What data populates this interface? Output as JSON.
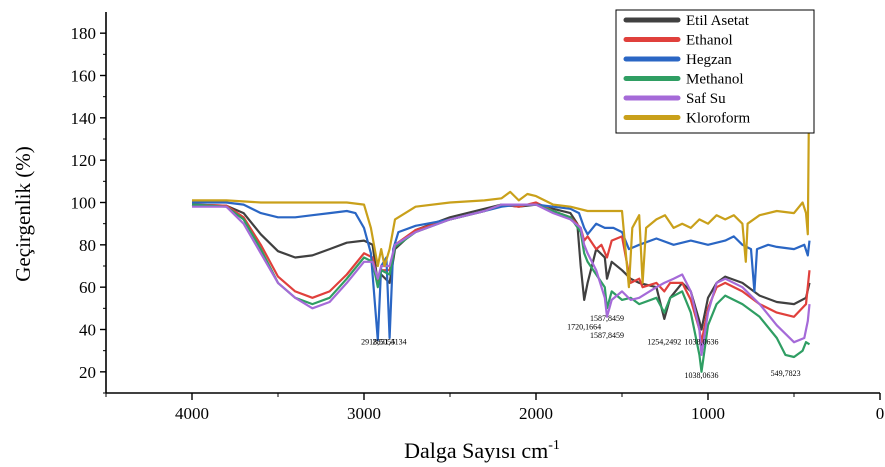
{
  "chart_data": {
    "type": "line",
    "xlabel": "Dalga Sayısı cm",
    "xlabel_sup": "-1",
    "ylabel": "Geçirgenlik (%)",
    "xlim": [
      4500,
      0
    ],
    "ylim": [
      10,
      190
    ],
    "x_ticks": [
      4000,
      3000,
      2000,
      1000,
      0
    ],
    "y_ticks": [
      20,
      40,
      60,
      80,
      100,
      120,
      140,
      160,
      180
    ],
    "legend_position": "top-right",
    "series": [
      {
        "name": "Etil Asetat",
        "color": "#404040",
        "points": [
          [
            4000,
            99
          ],
          [
            3800,
            98.5
          ],
          [
            3700,
            95
          ],
          [
            3600,
            85
          ],
          [
            3500,
            77
          ],
          [
            3400,
            74
          ],
          [
            3300,
            75
          ],
          [
            3200,
            78
          ],
          [
            3100,
            81
          ],
          [
            3000,
            82
          ],
          [
            2950,
            80
          ],
          [
            2920,
            62
          ],
          [
            2900,
            66
          ],
          [
            2851,
            62
          ],
          [
            2820,
            78
          ],
          [
            2700,
            87
          ],
          [
            2500,
            93
          ],
          [
            2300,
            97
          ],
          [
            2200,
            99
          ],
          [
            2100,
            98
          ],
          [
            2000,
            99
          ],
          [
            1900,
            97
          ],
          [
            1800,
            95
          ],
          [
            1760,
            90
          ],
          [
            1740,
            70
          ],
          [
            1720,
            54
          ],
          [
            1700,
            62
          ],
          [
            1650,
            78
          ],
          [
            1600,
            74
          ],
          [
            1587,
            64
          ],
          [
            1560,
            72
          ],
          [
            1500,
            68
          ],
          [
            1450,
            64
          ],
          [
            1400,
            62
          ],
          [
            1300,
            60
          ],
          [
            1254,
            45
          ],
          [
            1220,
            55
          ],
          [
            1150,
            62
          ],
          [
            1100,
            58
          ],
          [
            1050,
            44
          ],
          [
            1038,
            40
          ],
          [
            1000,
            55
          ],
          [
            950,
            62
          ],
          [
            900,
            65
          ],
          [
            800,
            62
          ],
          [
            700,
            56
          ],
          [
            600,
            53
          ],
          [
            500,
            52
          ],
          [
            430,
            55
          ],
          [
            410,
            62
          ]
        ]
      },
      {
        "name": "Ethanol",
        "color": "#e0403c",
        "points": [
          [
            4000,
            99
          ],
          [
            3800,
            98.5
          ],
          [
            3700,
            93
          ],
          [
            3600,
            80
          ],
          [
            3500,
            65
          ],
          [
            3400,
            58
          ],
          [
            3300,
            55
          ],
          [
            3200,
            58
          ],
          [
            3100,
            66
          ],
          [
            3000,
            76
          ],
          [
            2950,
            74
          ],
          [
            2920,
            62
          ],
          [
            2900,
            68
          ],
          [
            2851,
            68
          ],
          [
            2820,
            80
          ],
          [
            2700,
            87
          ],
          [
            2500,
            92
          ],
          [
            2300,
            96
          ],
          [
            2200,
            99
          ],
          [
            2100,
            98
          ],
          [
            2000,
            100
          ],
          [
            1900,
            96
          ],
          [
            1800,
            93
          ],
          [
            1740,
            88
          ],
          [
            1720,
            82
          ],
          [
            1700,
            84
          ],
          [
            1650,
            78
          ],
          [
            1620,
            80
          ],
          [
            1587,
            74
          ],
          [
            1560,
            82
          ],
          [
            1500,
            84
          ],
          [
            1450,
            62
          ],
          [
            1400,
            64
          ],
          [
            1380,
            60
          ],
          [
            1300,
            62
          ],
          [
            1254,
            58
          ],
          [
            1220,
            62
          ],
          [
            1150,
            62
          ],
          [
            1100,
            54
          ],
          [
            1050,
            40
          ],
          [
            1038,
            34
          ],
          [
            1000,
            50
          ],
          [
            950,
            60
          ],
          [
            900,
            62
          ],
          [
            800,
            58
          ],
          [
            700,
            52
          ],
          [
            600,
            48
          ],
          [
            500,
            46
          ],
          [
            430,
            52
          ],
          [
            410,
            68
          ]
        ]
      },
      {
        "name": "Hegzan",
        "color": "#2a66c4",
        "points": [
          [
            4000,
            100
          ],
          [
            3800,
            100
          ],
          [
            3700,
            99
          ],
          [
            3600,
            95
          ],
          [
            3500,
            93
          ],
          [
            3400,
            93
          ],
          [
            3300,
            94
          ],
          [
            3200,
            95
          ],
          [
            3100,
            96
          ],
          [
            3050,
            95
          ],
          [
            3000,
            88
          ],
          [
            2960,
            76
          ],
          [
            2920,
            35
          ],
          [
            2900,
            70
          ],
          [
            2870,
            74
          ],
          [
            2851,
            36
          ],
          [
            2830,
            78
          ],
          [
            2800,
            86
          ],
          [
            2700,
            89
          ],
          [
            2500,
            92
          ],
          [
            2300,
            96
          ],
          [
            2200,
            98
          ],
          [
            2100,
            99
          ],
          [
            2000,
            99
          ],
          [
            1900,
            98
          ],
          [
            1800,
            97
          ],
          [
            1750,
            95
          ],
          [
            1720,
            88
          ],
          [
            1700,
            85
          ],
          [
            1650,
            90
          ],
          [
            1600,
            88
          ],
          [
            1550,
            88
          ],
          [
            1500,
            86
          ],
          [
            1460,
            78
          ],
          [
            1400,
            80
          ],
          [
            1300,
            83
          ],
          [
            1200,
            80
          ],
          [
            1100,
            82
          ],
          [
            1000,
            80
          ],
          [
            900,
            82
          ],
          [
            850,
            84
          ],
          [
            800,
            80
          ],
          [
            750,
            78
          ],
          [
            730,
            58
          ],
          [
            715,
            78
          ],
          [
            650,
            80
          ],
          [
            600,
            79
          ],
          [
            500,
            78
          ],
          [
            440,
            80
          ],
          [
            420,
            75
          ],
          [
            410,
            82
          ]
        ]
      },
      {
        "name": "Methanol",
        "color": "#2f9e63",
        "points": [
          [
            4000,
            99
          ],
          [
            3800,
            98
          ],
          [
            3700,
            92
          ],
          [
            3600,
            78
          ],
          [
            3500,
            62
          ],
          [
            3400,
            55
          ],
          [
            3300,
            52
          ],
          [
            3200,
            55
          ],
          [
            3100,
            64
          ],
          [
            3000,
            74
          ],
          [
            2950,
            72
          ],
          [
            2920,
            60
          ],
          [
            2900,
            68
          ],
          [
            2851,
            66
          ],
          [
            2820,
            79
          ],
          [
            2700,
            86
          ],
          [
            2500,
            92
          ],
          [
            2300,
            96
          ],
          [
            2200,
            99
          ],
          [
            2100,
            99
          ],
          [
            2000,
            99
          ],
          [
            1900,
            96
          ],
          [
            1800,
            93
          ],
          [
            1740,
            86
          ],
          [
            1720,
            76
          ],
          [
            1700,
            72
          ],
          [
            1650,
            66
          ],
          [
            1600,
            60
          ],
          [
            1587,
            50
          ],
          [
            1560,
            58
          ],
          [
            1500,
            54
          ],
          [
            1450,
            55
          ],
          [
            1400,
            52
          ],
          [
            1300,
            55
          ],
          [
            1254,
            48
          ],
          [
            1220,
            55
          ],
          [
            1150,
            58
          ],
          [
            1100,
            48
          ],
          [
            1050,
            28
          ],
          [
            1038,
            20
          ],
          [
            1000,
            42
          ],
          [
            950,
            52
          ],
          [
            900,
            56
          ],
          [
            800,
            52
          ],
          [
            700,
            46
          ],
          [
            600,
            36
          ],
          [
            550,
            28
          ],
          [
            500,
            27
          ],
          [
            450,
            30
          ],
          [
            430,
            34
          ],
          [
            410,
            33
          ]
        ]
      },
      {
        "name": "Saf Su",
        "color": "#a56ad8",
        "points": [
          [
            4000,
            98
          ],
          [
            3800,
            98
          ],
          [
            3700,
            90
          ],
          [
            3600,
            76
          ],
          [
            3500,
            62
          ],
          [
            3400,
            55
          ],
          [
            3300,
            50
          ],
          [
            3200,
            53
          ],
          [
            3100,
            62
          ],
          [
            3000,
            72
          ],
          [
            2950,
            72
          ],
          [
            2920,
            64
          ],
          [
            2900,
            70
          ],
          [
            2851,
            70
          ],
          [
            2820,
            80
          ],
          [
            2700,
            86
          ],
          [
            2500,
            92
          ],
          [
            2300,
            96
          ],
          [
            2200,
            99
          ],
          [
            2100,
            99
          ],
          [
            2000,
            99
          ],
          [
            1900,
            95
          ],
          [
            1800,
            92
          ],
          [
            1740,
            88
          ],
          [
            1720,
            80
          ],
          [
            1700,
            76
          ],
          [
            1650,
            68
          ],
          [
            1600,
            55
          ],
          [
            1587,
            46
          ],
          [
            1560,
            54
          ],
          [
            1500,
            58
          ],
          [
            1450,
            54
          ],
          [
            1400,
            55
          ],
          [
            1300,
            60
          ],
          [
            1254,
            62
          ],
          [
            1200,
            64
          ],
          [
            1150,
            66
          ],
          [
            1100,
            58
          ],
          [
            1050,
            40
          ],
          [
            1038,
            28
          ],
          [
            1000,
            48
          ],
          [
            950,
            62
          ],
          [
            900,
            64
          ],
          [
            800,
            60
          ],
          [
            700,
            52
          ],
          [
            600,
            42
          ],
          [
            500,
            34
          ],
          [
            440,
            36
          ],
          [
            420,
            44
          ],
          [
            410,
            52
          ]
        ]
      },
      {
        "name": "Kloroform",
        "color": "#c9a01a",
        "points": [
          [
            4000,
            101
          ],
          [
            3800,
            101
          ],
          [
            3600,
            100
          ],
          [
            3400,
            100
          ],
          [
            3200,
            100
          ],
          [
            3100,
            100
          ],
          [
            3000,
            99
          ],
          [
            2960,
            88
          ],
          [
            2920,
            70
          ],
          [
            2900,
            78
          ],
          [
            2880,
            70
          ],
          [
            2851,
            78
          ],
          [
            2820,
            92
          ],
          [
            2700,
            98
          ],
          [
            2500,
            100
          ],
          [
            2300,
            101
          ],
          [
            2200,
            102
          ],
          [
            2150,
            105
          ],
          [
            2100,
            101
          ],
          [
            2050,
            104
          ],
          [
            2000,
            103
          ],
          [
            1950,
            101
          ],
          [
            1900,
            99
          ],
          [
            1800,
            98
          ],
          [
            1700,
            96
          ],
          [
            1600,
            96
          ],
          [
            1500,
            96
          ],
          [
            1460,
            60
          ],
          [
            1440,
            88
          ],
          [
            1400,
            94
          ],
          [
            1380,
            62
          ],
          [
            1360,
            88
          ],
          [
            1300,
            92
          ],
          [
            1250,
            94
          ],
          [
            1200,
            88
          ],
          [
            1150,
            90
          ],
          [
            1100,
            88
          ],
          [
            1050,
            92
          ],
          [
            1000,
            90
          ],
          [
            950,
            94
          ],
          [
            900,
            92
          ],
          [
            850,
            94
          ],
          [
            800,
            90
          ],
          [
            780,
            72
          ],
          [
            770,
            90
          ],
          [
            700,
            94
          ],
          [
            600,
            96
          ],
          [
            500,
            95
          ],
          [
            450,
            100
          ],
          [
            430,
            95
          ],
          [
            420,
            85
          ],
          [
            410,
            172
          ],
          [
            405,
            150
          ]
        ]
      }
    ],
    "annotations": [
      {
        "text": "2918,5055",
        "x": 2918,
        "y": 33
      },
      {
        "text": "2851,4134",
        "x": 2851,
        "y": 33
      },
      {
        "text": "1720,1664",
        "x": 1720,
        "y": 40
      },
      {
        "text": "1587,8459",
        "x": 1587,
        "y": 44
      },
      {
        "text": "1587,8459",
        "x": 1587,
        "y": 36
      },
      {
        "text": "1254,2492",
        "x": 1254,
        "y": 33
      },
      {
        "text": "1038,0636",
        "x": 1038,
        "y": 33
      },
      {
        "text": "1038,0636",
        "x": 1038,
        "y": 17
      },
      {
        "text": "549,7823",
        "x": 549,
        "y": 18
      }
    ]
  }
}
